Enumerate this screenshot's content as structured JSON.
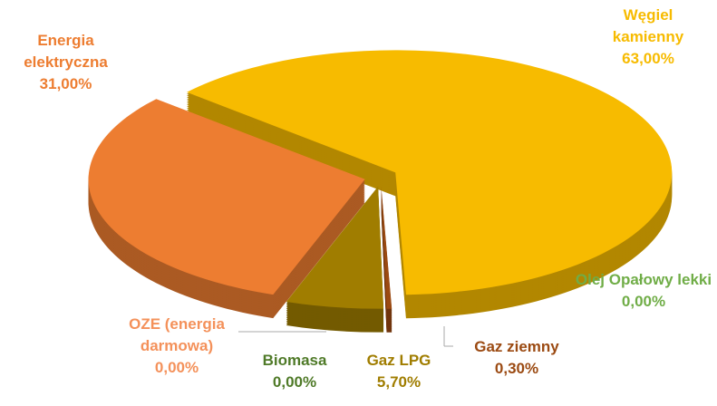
{
  "chart_data": {
    "type": "pie",
    "categories": [
      "Węgiel kamienny",
      "Olej Opałowy lekki",
      "Gaz ziemny",
      "Gaz LPG",
      "Biomasa",
      "OZE (energia darmowa)",
      "Energia elektryczna"
    ],
    "values": [
      63,
      0,
      0.3,
      5.7,
      0,
      0,
      31
    ],
    "value_labels": [
      "63,00%",
      "0,00%",
      "0,30%",
      "5,70%",
      "0,00%",
      "0,00%",
      "31,00%"
    ],
    "colors": [
      "#f7bb00",
      "#70ad47",
      "#9b4a12",
      "#a07d00",
      "#4f7a28",
      "#f4915a",
      "#ed7d31"
    ]
  }
}
